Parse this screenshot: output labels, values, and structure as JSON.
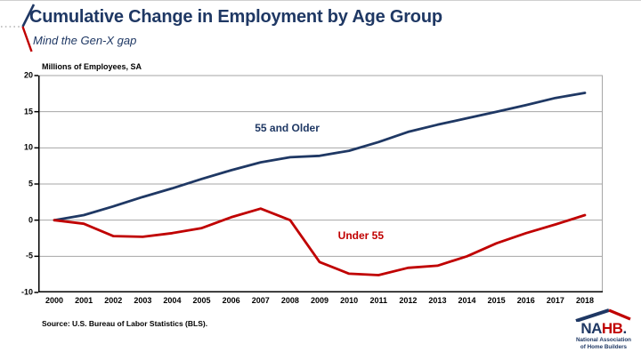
{
  "header": {
    "title": "Cumulative Change in Employment by Age Group",
    "subtitle": "Mind the Gen-X gap"
  },
  "chart_data": {
    "type": "line",
    "title": "Cumulative Change in Employment by Age Group",
    "subtitle": "Mind the Gen-X gap",
    "axis_note": "Millions of Employees, SA",
    "x": [
      2000,
      2001,
      2002,
      2003,
      2004,
      2005,
      2006,
      2007,
      2008,
      2009,
      2010,
      2011,
      2012,
      2013,
      2014,
      2015,
      2016,
      2017,
      2018
    ],
    "series": [
      {
        "name": "55 and Older",
        "color": "#1f3864",
        "values": [
          0.0,
          0.7,
          1.9,
          3.2,
          4.4,
          5.7,
          6.9,
          8.0,
          8.7,
          8.9,
          9.6,
          10.8,
          12.2,
          13.2,
          14.1,
          15.0,
          15.9,
          16.9,
          17.6
        ],
        "label_anchor": {
          "year": 2007.9,
          "value": 12.8
        }
      },
      {
        "name": "Under 55",
        "color": "#c00000",
        "values": [
          0.0,
          -0.5,
          -2.2,
          -2.3,
          -1.8,
          -1.1,
          0.4,
          1.6,
          0.0,
          -5.8,
          -7.4,
          -7.6,
          -6.6,
          -6.3,
          -5.0,
          -3.2,
          -1.8,
          -0.6,
          0.7
        ],
        "label_anchor": {
          "year": 2010.4,
          "value": -2.1
        }
      }
    ],
    "ylim": [
      -10,
      20
    ],
    "yticks": [
      20,
      15,
      10,
      5,
      0,
      -5,
      -10
    ],
    "grid": true,
    "gridline_color": "#a6a6a6",
    "axis_color": "#000000",
    "legend_position": "inline-labels"
  },
  "footer": {
    "source": "Source: U.S. Bureau of Labor Statistics (BLS)."
  },
  "logo": {
    "text_left": "NA",
    "text_right": "HB",
    "period": ".",
    "tagline_line1": "National Association",
    "tagline_line2": "of Home Builders",
    "navy": "#1f3864",
    "red": "#c00000"
  },
  "colors": {
    "navy": "#1f3864",
    "red": "#c00000",
    "gridline": "#a6a6a6",
    "dotted_accent": "#b3b3b3"
  }
}
